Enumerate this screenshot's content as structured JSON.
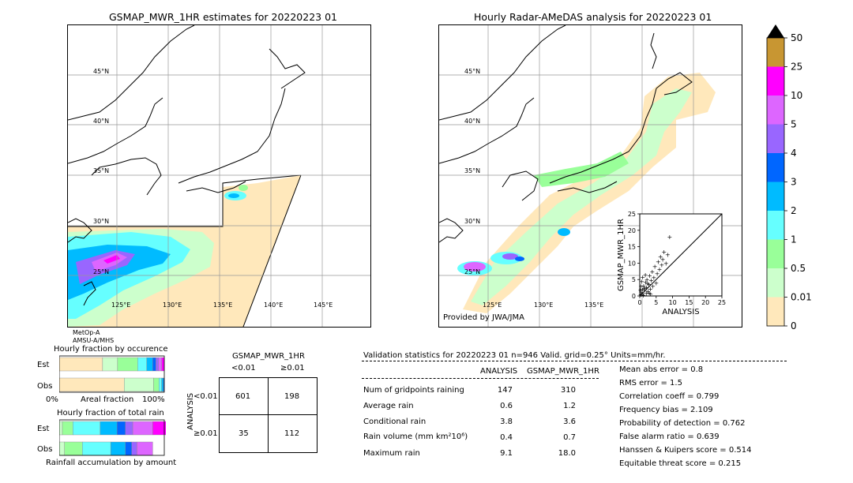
{
  "left_map": {
    "title": "GSMAP_MWR_1HR estimates for 20220223 01",
    "lat_labels": [
      "45°N",
      "40°N",
      "35°N",
      "30°N",
      "25°N"
    ],
    "lon_labels": [
      "125°E",
      "130°E",
      "135°E",
      "140°E",
      "145°E"
    ],
    "sensors": [
      "MetOp-A",
      "AMSU-A/MHS"
    ]
  },
  "right_map": {
    "title": "Hourly Radar-AMeDAS analysis for 20220223 01",
    "lat_labels": [
      "45°N",
      "40°N",
      "35°N",
      "30°N",
      "25°N"
    ],
    "lon_labels": [
      "125°E",
      "130°E",
      "135°E"
    ],
    "credit": "Provided by JWA/JMA"
  },
  "colorbar": {
    "labels": [
      "50",
      "25",
      "10",
      "5",
      "4",
      "3",
      "2",
      "1",
      "0.5",
      "0.01",
      "0"
    ],
    "colors": [
      "#c89632",
      "#ff00ff",
      "#dd66ff",
      "#9966ff",
      "#0066ff",
      "#00bbff",
      "#66ffff",
      "#99ff99",
      "#ccffcc",
      "#ffe8bb"
    ],
    "over_color": "#000000"
  },
  "fraction_occurrence": {
    "title": "Hourly fraction by occurence",
    "row_labels": [
      "Est",
      "Obs"
    ],
    "axis_left": "0%",
    "axis_mid": "Areal fraction",
    "axis_right": "100%"
  },
  "fraction_total": {
    "title": "Hourly fraction of total rain",
    "row_labels": [
      "Est",
      "Obs"
    ],
    "footer": "Rainfall accumulation by amount"
  },
  "contingency": {
    "title": "GSMAP_MWR_1HR",
    "col_labels": [
      "<0.01",
      "≥0.01"
    ],
    "row_axis": "ANALYSIS",
    "row_labels": [
      "<0.01",
      "≥0.01"
    ],
    "cells": [
      [
        "601",
        "198"
      ],
      [
        "35",
        "112"
      ]
    ]
  },
  "validation": {
    "header": "Validation statistics for 20220223 01  n=946 Valid. grid=0.25° Units=mm/hr.",
    "col_headers": [
      "ANALYSIS",
      "GSMAP_MWR_1HR"
    ],
    "rows": [
      {
        "label": "Num of gridpoints raining",
        "analysis": "147",
        "gsmap": "310"
      },
      {
        "label": "Average rain",
        "analysis": "0.6",
        "gsmap": "1.2"
      },
      {
        "label": "Conditional rain",
        "analysis": "3.8",
        "gsmap": "3.6"
      },
      {
        "label": "Rain volume (mm km²10⁶)",
        "analysis": "0.4",
        "gsmap": "0.7"
      },
      {
        "label": "Maximum rain",
        "analysis": "9.1",
        "gsmap": "18.0"
      }
    ],
    "scores": [
      "Mean abs error =    0.8",
      "RMS error =    1.5",
      "Correlation coeff =  0.799",
      "Frequency bias =  2.109",
      "Probability of detection =  0.762",
      "False alarm ratio =  0.639",
      "Hanssen & Kuipers score =  0.514",
      "Equitable threat score =  0.215"
    ]
  },
  "chart_data": {
    "type": "scatter",
    "title": "",
    "xlabel": "ANALYSIS",
    "ylabel": "GSMAP_MWR_1HR",
    "xlim": [
      0,
      25
    ],
    "ylim": [
      0,
      25
    ],
    "xticks": [
      "0",
      "5",
      "10",
      "15",
      "20",
      "25"
    ],
    "yticks": [
      "0",
      "5",
      "10",
      "15",
      "20",
      "25"
    ],
    "points": [
      [
        0.3,
        0.5
      ],
      [
        0.5,
        1.2
      ],
      [
        0.8,
        2.0
      ],
      [
        1.0,
        0.7
      ],
      [
        1.2,
        3.1
      ],
      [
        1.5,
        1.8
      ],
      [
        1.8,
        4.2
      ],
      [
        2.0,
        2.6
      ],
      [
        2.2,
        5.0
      ],
      [
        2.5,
        1.4
      ],
      [
        2.8,
        3.6
      ],
      [
        3.0,
        6.2
      ],
      [
        3.2,
        2.2
      ],
      [
        3.5,
        4.8
      ],
      [
        3.8,
        7.5
      ],
      [
        4.0,
        3.0
      ],
      [
        4.3,
        5.6
      ],
      [
        4.6,
        9.0
      ],
      [
        5.0,
        4.0
      ],
      [
        5.3,
        6.8
      ],
      [
        5.6,
        10.5
      ],
      [
        6.0,
        8.2
      ],
      [
        6.3,
        12.0
      ],
      [
        6.7,
        9.5
      ],
      [
        7.0,
        11.2
      ],
      [
        7.4,
        13.5
      ],
      [
        8.0,
        10.0
      ],
      [
        8.5,
        12.6
      ],
      [
        9.1,
        18.0
      ],
      [
        0.2,
        1.8
      ],
      [
        0.4,
        3.0
      ],
      [
        0.6,
        4.5
      ],
      [
        0.9,
        5.8
      ],
      [
        1.1,
        0.3
      ],
      [
        1.4,
        2.4
      ],
      [
        1.7,
        6.5
      ],
      [
        2.1,
        0.9
      ],
      [
        2.4,
        3.9
      ],
      [
        2.9,
        1.0
      ],
      [
        3.3,
        0.6
      ]
    ],
    "diagonal": true
  },
  "fraction_bars": {
    "occurrence_est": [
      {
        "color": "#ffe8bb",
        "frac": 0.52
      },
      {
        "color": "#ccffcc",
        "frac": 0.18
      },
      {
        "color": "#99ff99",
        "frac": 0.24
      },
      {
        "color": "#66ffff",
        "frac": 0.11
      },
      {
        "color": "#00bbff",
        "frac": 0.07
      },
      {
        "color": "#0066ff",
        "frac": 0.04
      },
      {
        "color": "#9966ff",
        "frac": 0.03
      },
      {
        "color": "#dd66ff",
        "frac": 0.04
      },
      {
        "color": "#ff00ff",
        "frac": 0.03
      }
    ],
    "occurrence_obs": [
      {
        "color": "#ffe8bb",
        "frac": 0.73
      },
      {
        "color": "#ccffcc",
        "frac": 0.33
      },
      {
        "color": "#99ff99",
        "frac": 0.06
      },
      {
        "color": "#66ffff",
        "frac": 0.03
      },
      {
        "color": "#00bbff",
        "frac": 0.02
      },
      {
        "color": "#0066ff",
        "frac": 0.01
      }
    ],
    "total_est": [
      {
        "color": "#ccffcc",
        "frac": 0.03
      },
      {
        "color": "#99ff99",
        "frac": 0.1
      },
      {
        "color": "#66ffff",
        "frac": 0.26
      },
      {
        "color": "#00bbff",
        "frac": 0.16
      },
      {
        "color": "#0066ff",
        "frac": 0.08
      },
      {
        "color": "#9966ff",
        "frac": 0.07
      },
      {
        "color": "#dd66ff",
        "frac": 0.19
      },
      {
        "color": "#ff00ff",
        "frac": 0.23
      }
    ],
    "total_obs": [
      {
        "color": "#ccffcc",
        "frac": 0.05
      },
      {
        "color": "#99ff99",
        "frac": 0.17
      },
      {
        "color": "#66ffff",
        "frac": 0.27
      },
      {
        "color": "#00bbff",
        "frac": 0.14
      },
      {
        "color": "#0066ff",
        "frac": 0.06
      },
      {
        "color": "#9966ff",
        "frac": 0.05
      },
      {
        "color": "#dd66ff",
        "frac": 0.15
      }
    ]
  }
}
